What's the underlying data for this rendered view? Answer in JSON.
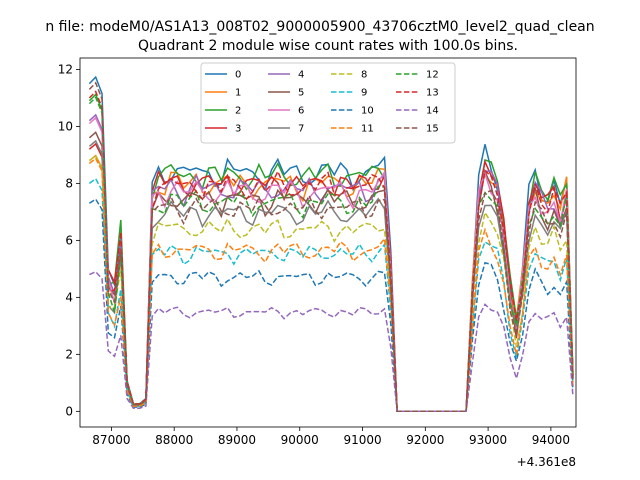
{
  "chart_data": {
    "type": "line",
    "suptitle": "n file: modeM0/AS1A13_008T02_9000005900_43706cztM0_level2_quad_clean",
    "title": "Quadrant 2 module wise count rates with 100.0s bins.",
    "xlabel": "",
    "ylabel": "",
    "x_offset_label": "+4.361e8",
    "xlim": [
      86500,
      94400
    ],
    "ylim": [
      -0.55,
      12.4
    ],
    "x_ticks": [
      87000,
      88000,
      89000,
      90000,
      91000,
      92000,
      93000,
      94000
    ],
    "x_tick_labels": [
      "87000",
      "88000",
      "89000",
      "90000",
      "91000",
      "92000",
      "93000",
      "94000"
    ],
    "y_ticks": [
      0,
      2,
      4,
      6,
      8,
      10,
      12
    ],
    "y_tick_labels": [
      "0",
      "2",
      "4",
      "6",
      "8",
      "10",
      "12"
    ],
    "grid": false,
    "legend_position": "upper center",
    "x_start": 86650,
    "x_step": 100,
    "profile": [
      1.0,
      1.02,
      0.97,
      0.55,
      0.5,
      0.72,
      0.12,
      0.03,
      0.03,
      0.05,
      0.9,
      0.95,
      0.93,
      0.96,
      0.95,
      0.92,
      0.94,
      0.96,
      0.93,
      0.95,
      0.94,
      0.92,
      0.96,
      0.93,
      0.95,
      0.94,
      0.93,
      0.95,
      0.92,
      0.94,
      0.96,
      0.93,
      0.95,
      0.94,
      0.92,
      0.95,
      0.93,
      0.94,
      0.96,
      0.93,
      0.95,
      0.94,
      0.92,
      0.95,
      0.93,
      0.94,
      0.97,
      0.98,
      0.6,
      0,
      0,
      0,
      0,
      0,
      0,
      0,
      0,
      0,
      0,
      0,
      0,
      0.5,
      0.9,
      1.02,
      0.98,
      0.92,
      0.75,
      0.5,
      0.35,
      0.55,
      0.85,
      0.95,
      0.88,
      0.85,
      0.9,
      0.82,
      0.92,
      0.15
    ],
    "series": [
      {
        "name": "0",
        "level": 8.9,
        "peak": 11.5,
        "color": "#1f77b4",
        "dash": "solid"
      },
      {
        "name": "1",
        "level": 8.5,
        "peak": 8.8,
        "color": "#ff7f0e",
        "dash": "solid"
      },
      {
        "name": "2",
        "level": 8.8,
        "peak": 10.9,
        "color": "#2ca02c",
        "dash": "solid"
      },
      {
        "name": "3",
        "level": 8.5,
        "peak": 9.2,
        "color": "#d62728",
        "dash": "solid"
      },
      {
        "name": "4",
        "level": 8.3,
        "peak": 10.2,
        "color": "#9467bd",
        "dash": "solid"
      },
      {
        "name": "5",
        "level": 7.9,
        "peak": 9.6,
        "color": "#8c564b",
        "dash": "solid"
      },
      {
        "name": "6",
        "level": 8.2,
        "peak": 10.1,
        "color": "#e377c2",
        "dash": "solid"
      },
      {
        "name": "7",
        "level": 7.4,
        "peak": 9.3,
        "color": "#7f7f7f",
        "dash": "solid"
      },
      {
        "name": "8",
        "level": 6.8,
        "peak": 8.8,
        "color": "#bcbd22",
        "dash": "dashed"
      },
      {
        "name": "9",
        "level": 5.9,
        "peak": 8.0,
        "color": "#17becf",
        "dash": "dashed"
      },
      {
        "name": "10",
        "level": 5.0,
        "peak": 7.3,
        "color": "#1f77b4",
        "dash": "dashed"
      },
      {
        "name": "11",
        "level": 6.0,
        "peak": 8.7,
        "color": "#ff7f0e",
        "dash": "dashed"
      },
      {
        "name": "12",
        "level": 7.8,
        "peak": 10.8,
        "color": "#2ca02c",
        "dash": "dashed"
      },
      {
        "name": "13",
        "level": 8.4,
        "peak": 11.0,
        "color": "#d62728",
        "dash": "dashed"
      },
      {
        "name": "14",
        "level": 3.7,
        "peak": 4.8,
        "color": "#9467bd",
        "dash": "dashed"
      },
      {
        "name": "15",
        "level": 7.6,
        "peak": 11.3,
        "color": "#8c564b",
        "dash": "dashed"
      }
    ]
  }
}
